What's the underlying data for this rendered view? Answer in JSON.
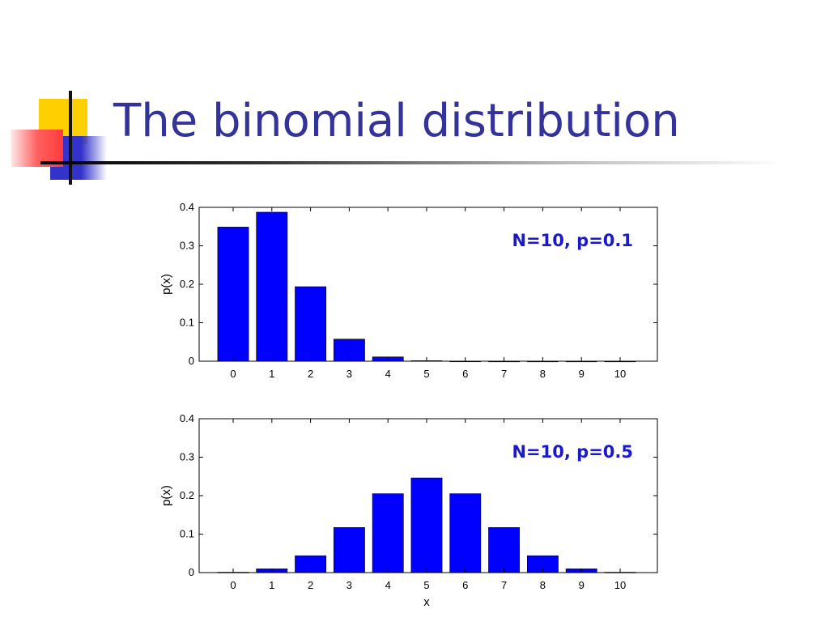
{
  "slide": {
    "title": "The binomial distribution"
  },
  "colors": {
    "title": "#333399",
    "bar": "#0000ff",
    "annotation": "#1a1acc",
    "deco_yellow": "#ffd000",
    "deco_red": "#ff3b3b",
    "deco_blue": "#3333cc"
  },
  "chart_data": [
    {
      "type": "bar",
      "annotation": "N=10, p=0.1",
      "ylabel": "p(x)",
      "xlabel": "",
      "categories": [
        "0",
        "1",
        "2",
        "3",
        "4",
        "5",
        "6",
        "7",
        "8",
        "9",
        "10"
      ],
      "values": [
        0.3487,
        0.3874,
        0.1937,
        0.0574,
        0.0112,
        0.0015,
        0.0001,
        0.0,
        0.0,
        0.0,
        0.0
      ],
      "ylim": [
        0,
        0.4
      ],
      "yticks": [
        "0",
        "0.1",
        "0.2",
        "0.3",
        "0.4"
      ],
      "grid": false,
      "bar_color": "#0000ff"
    },
    {
      "type": "bar",
      "annotation": "N=10, p=0.5",
      "ylabel": "p(x)",
      "xlabel": "x",
      "categories": [
        "0",
        "1",
        "2",
        "3",
        "4",
        "5",
        "6",
        "7",
        "8",
        "9",
        "10"
      ],
      "values": [
        0.001,
        0.0098,
        0.0439,
        0.1172,
        0.2051,
        0.2461,
        0.2051,
        0.1172,
        0.0439,
        0.0098,
        0.001
      ],
      "ylim": [
        0,
        0.4
      ],
      "yticks": [
        "0",
        "0.1",
        "0.2",
        "0.3",
        "0.4"
      ],
      "grid": false,
      "bar_color": "#0000ff"
    }
  ]
}
